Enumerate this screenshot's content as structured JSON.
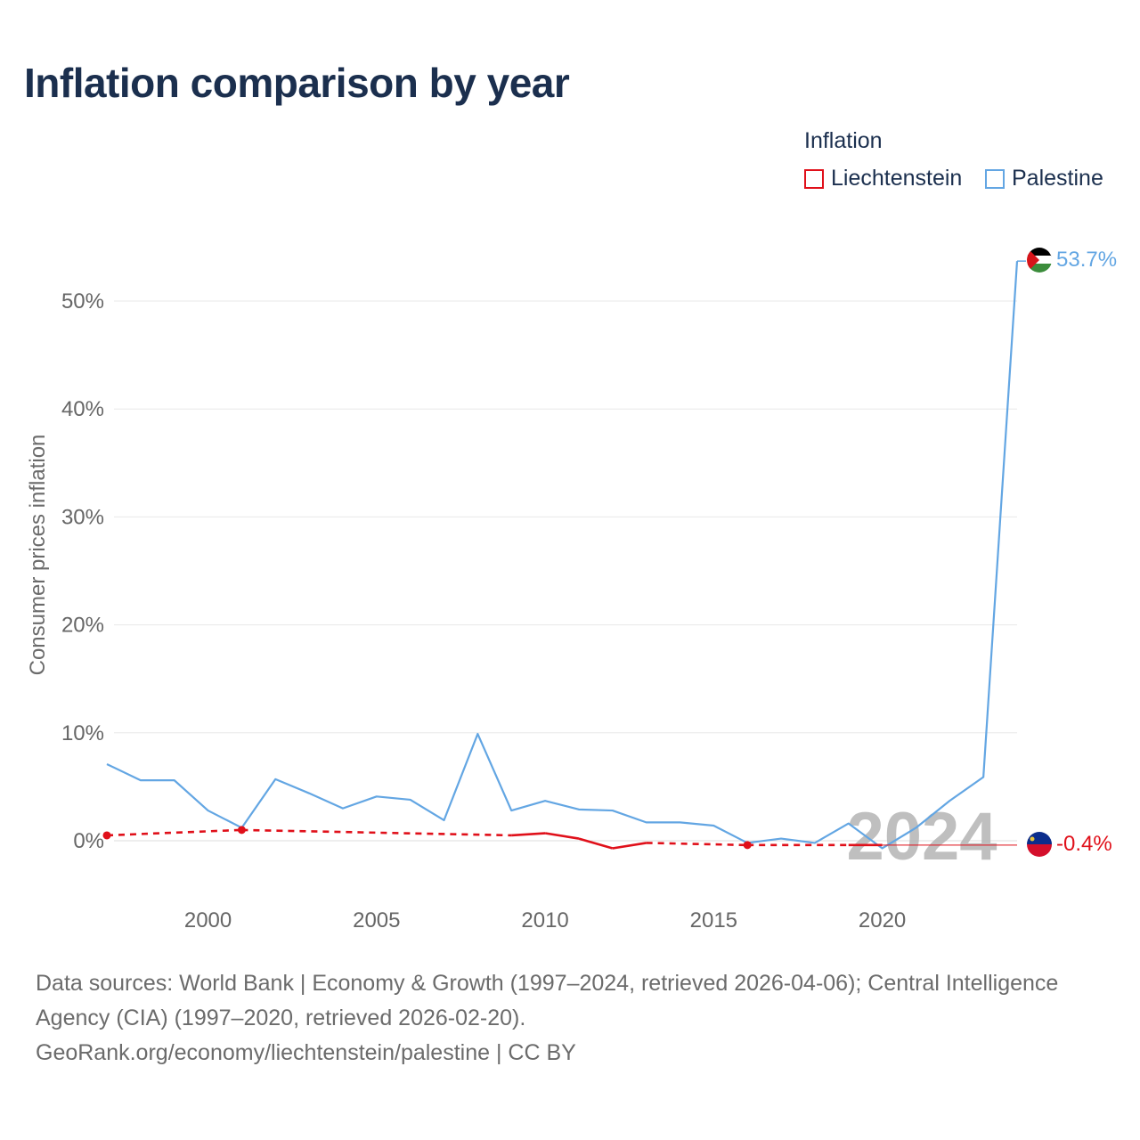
{
  "title": "Inflation comparison by year",
  "legend": {
    "title": "Inflation",
    "items": [
      {
        "label": "Liechtenstein",
        "color": "#e0101a"
      },
      {
        "label": "Palestine",
        "color": "#63a6e3"
      }
    ]
  },
  "chart_data": {
    "type": "line",
    "title": "Inflation comparison by year",
    "ylabel": "Consumer prices inflation",
    "xlabel": "",
    "xlim": [
      1997,
      2024
    ],
    "ylim": [
      -5,
      57
    ],
    "x_ticks": [
      2000,
      2005,
      2010,
      2015,
      2020
    ],
    "x_tick_labels": [
      "2000",
      "2005",
      "2010",
      "2015",
      "2020"
    ],
    "y_ticks": [
      0,
      10,
      20,
      30,
      40,
      50
    ],
    "y_tick_labels": [
      "0%",
      "10%",
      "20%",
      "30%",
      "40%",
      "50%"
    ],
    "year_watermark": "2024",
    "series": [
      {
        "name": "Liechtenstein",
        "color": "#e0101a",
        "points": [
          {
            "x": 1997,
            "y": 0.5,
            "estimated": false
          },
          {
            "x": 2001,
            "y": 1.0,
            "estimated": false
          },
          {
            "x": 2009,
            "y": 0.5,
            "estimated": false
          },
          {
            "x": 2010,
            "y": 0.7,
            "estimated": false
          },
          {
            "x": 2011,
            "y": 0.2,
            "estimated": false
          },
          {
            "x": 2012,
            "y": -0.7,
            "estimated": false
          },
          {
            "x": 2013,
            "y": -0.2,
            "estimated": false
          },
          {
            "x": 2016,
            "y": -0.4,
            "estimated": false
          },
          {
            "x": 2019,
            "y": -0.4,
            "estimated": false
          },
          {
            "x": 2020,
            "y": -0.4,
            "estimated": false
          },
          {
            "x": 2024,
            "y": -0.4,
            "estimated": true
          }
        ],
        "dashed_segments": [
          [
            1997,
            2009
          ],
          [
            2013,
            2019
          ]
        ],
        "end_label": "-0.4%",
        "end_flag": "liechtenstein-flag-icon"
      },
      {
        "name": "Palestine",
        "color": "#63a6e3",
        "points": [
          {
            "x": 1997,
            "y": 7.1
          },
          {
            "x": 1998,
            "y": 5.6
          },
          {
            "x": 1999,
            "y": 5.6
          },
          {
            "x": 2000,
            "y": 2.8
          },
          {
            "x": 2001,
            "y": 1.2
          },
          {
            "x": 2002,
            "y": 5.7
          },
          {
            "x": 2003,
            "y": 4.4
          },
          {
            "x": 2004,
            "y": 3.0
          },
          {
            "x": 2005,
            "y": 4.1
          },
          {
            "x": 2006,
            "y": 3.8
          },
          {
            "x": 2007,
            "y": 1.9
          },
          {
            "x": 2008,
            "y": 9.9
          },
          {
            "x": 2009,
            "y": 2.8
          },
          {
            "x": 2010,
            "y": 3.7
          },
          {
            "x": 2011,
            "y": 2.9
          },
          {
            "x": 2012,
            "y": 2.8
          },
          {
            "x": 2013,
            "y": 1.7
          },
          {
            "x": 2014,
            "y": 1.7
          },
          {
            "x": 2015,
            "y": 1.4
          },
          {
            "x": 2016,
            "y": -0.2
          },
          {
            "x": 2017,
            "y": 0.2
          },
          {
            "x": 2018,
            "y": -0.2
          },
          {
            "x": 2019,
            "y": 1.6
          },
          {
            "x": 2020,
            "y": -0.7
          },
          {
            "x": 2021,
            "y": 1.2
          },
          {
            "x": 2022,
            "y": 3.7
          },
          {
            "x": 2023,
            "y": 5.9
          },
          {
            "x": 2024,
            "y": 53.7
          }
        ],
        "end_label": "53.7%",
        "end_flag": "palestine-flag-icon"
      }
    ]
  },
  "footer": {
    "sources": "Data sources: World Bank | Economy & Growth (1997–2024, retrieved 2026-04-06); Central Intelligence Agency (CIA) (1997–2020, retrieved 2026-02-20).",
    "link": "GeoRank.org/economy/liechtenstein/palestine | CC BY"
  }
}
